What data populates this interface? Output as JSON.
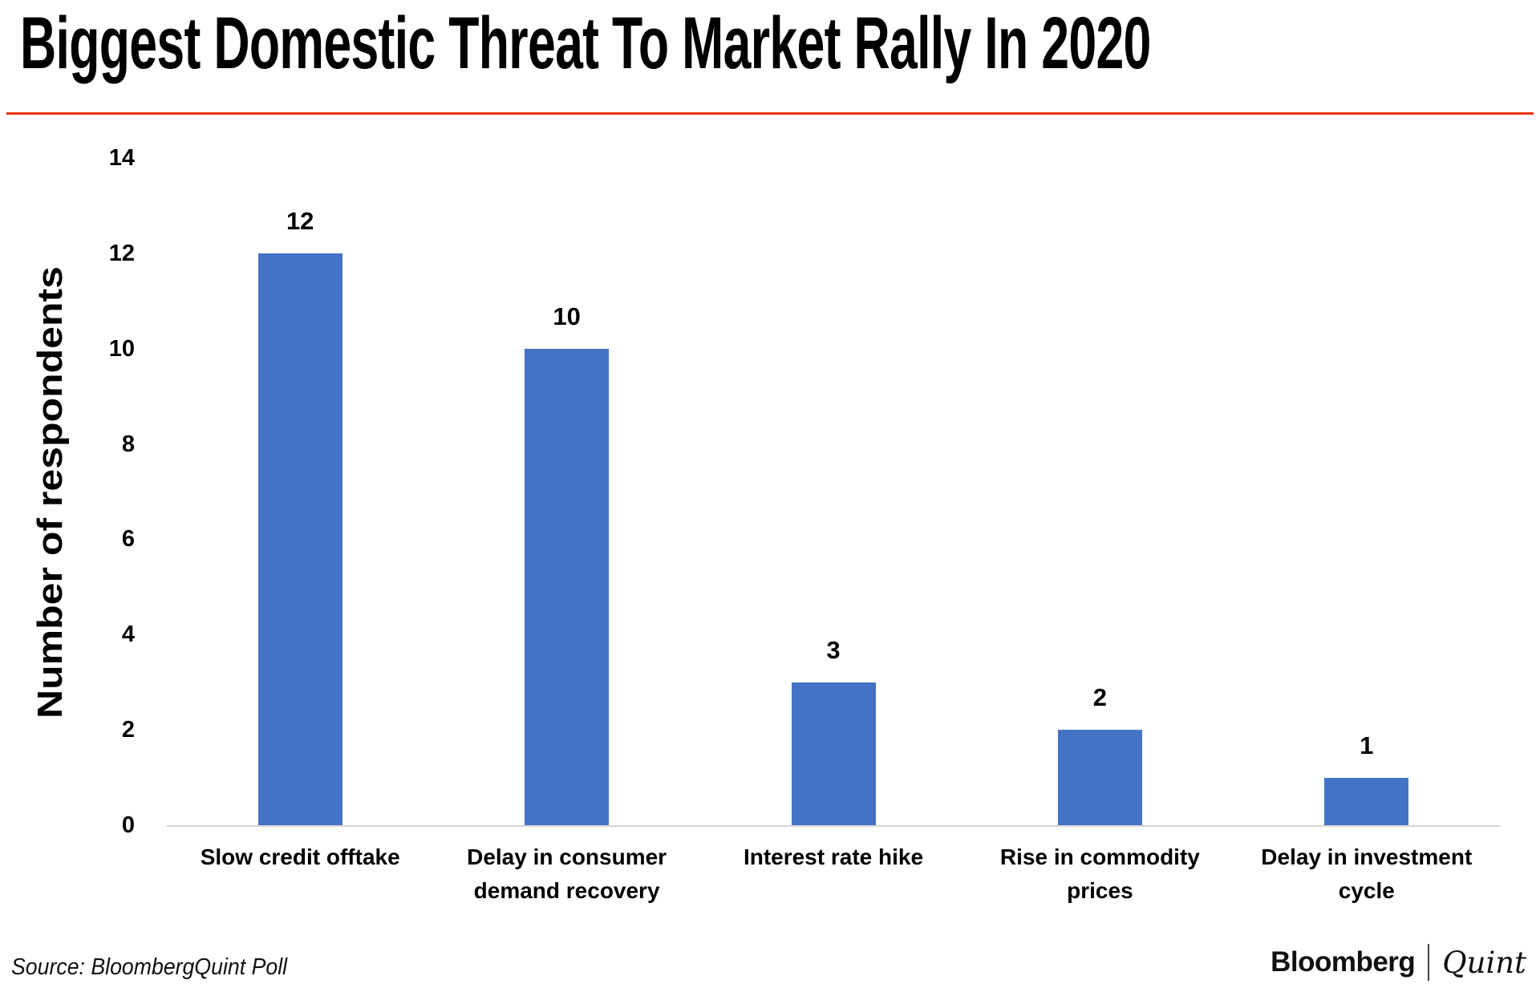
{
  "header": {
    "title": "Biggest Domestic Threat To Market Rally In 2020"
  },
  "chart_data": {
    "type": "bar",
    "categories": [
      "Slow credit offtake",
      "Delay in consumer demand recovery",
      "Interest rate hike",
      "Rise in commodity prices",
      "Delay in investment cycle"
    ],
    "values": [
      12,
      10,
      3,
      2,
      1
    ],
    "data_labels": [
      "12",
      "10",
      "3",
      "2",
      "1"
    ],
    "title": "Biggest Domestic Threat To Market Rally In 2020",
    "xlabel": "",
    "ylabel": "Number of respondents",
    "ylim": [
      0,
      14
    ],
    "yticks": [
      0,
      2,
      4,
      6,
      8,
      10,
      12,
      14
    ],
    "grid": "off",
    "legend": "none",
    "colors": {
      "bar": "#4472c4",
      "axis_line": "#d6d6d6",
      "text": "#000000"
    }
  },
  "footer": {
    "source": "Source: BloombergQuint Poll",
    "brand": {
      "bloomberg": "Bloomberg",
      "quint": "Quint"
    }
  },
  "accent": {
    "divider_color": "#e8350f"
  }
}
